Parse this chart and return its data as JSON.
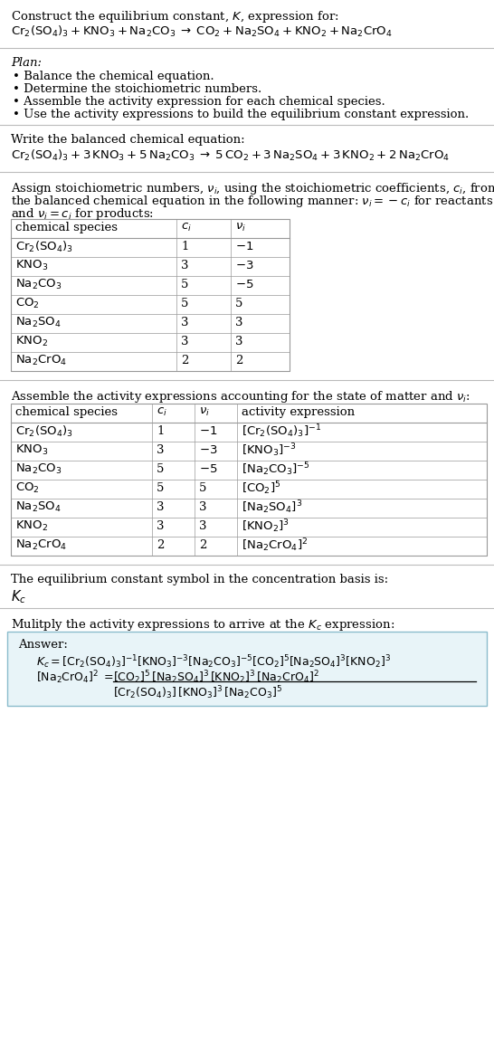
{
  "title_line1": "Construct the equilibrium constant, $K$, expression for:",
  "title_line2": "$\\mathrm{Cr_2(SO_4)_3 + KNO_3 + Na_2CO_3 \\;\\rightarrow\\; CO_2 + Na_2SO_4 + KNO_2 + Na_2CrO_4}$",
  "plan_title": "Plan:",
  "plan_items": [
    "Balance the chemical equation.",
    "Determine the stoichiometric numbers.",
    "Assemble the activity expression for each chemical species.",
    "Use the activity expressions to build the equilibrium constant expression."
  ],
  "balanced_label": "Write the balanced chemical equation:",
  "balanced_eq": "$\\mathrm{Cr_2(SO_4)_3 + 3\\,KNO_3 + 5\\,Na_2CO_3 \\;\\rightarrow\\; 5\\,CO_2 + 3\\,Na_2SO_4 + 3\\,KNO_2 + 2\\,Na_2CrO_4}$",
  "assign_text1": "Assign stoichiometric numbers, $\\nu_i$, using the stoichiometric coefficients, $c_i$, from",
  "assign_text2": "the balanced chemical equation in the following manner: $\\nu_i = -c_i$ for reactants",
  "assign_text3": "and $\\nu_i = c_i$ for products:",
  "table1_headers": [
    "chemical species",
    "$c_i$",
    "$\\nu_i$"
  ],
  "table1_rows": [
    [
      "$\\mathrm{Cr_2(SO_4)_3}$",
      "1",
      "$-1$"
    ],
    [
      "$\\mathrm{KNO_3}$",
      "3",
      "$-3$"
    ],
    [
      "$\\mathrm{Na_2CO_3}$",
      "5",
      "$-5$"
    ],
    [
      "$\\mathrm{CO_2}$",
      "5",
      "5"
    ],
    [
      "$\\mathrm{Na_2SO_4}$",
      "3",
      "3"
    ],
    [
      "$\\mathrm{KNO_2}$",
      "3",
      "3"
    ],
    [
      "$\\mathrm{Na_2CrO_4}$",
      "2",
      "2"
    ]
  ],
  "assemble_label": "Assemble the activity expressions accounting for the state of matter and $\\nu_i$:",
  "table2_headers": [
    "chemical species",
    "$c_i$",
    "$\\nu_i$",
    "activity expression"
  ],
  "table2_rows": [
    [
      "$\\mathrm{Cr_2(SO_4)_3}$",
      "1",
      "$-1$",
      "$[\\mathrm{Cr_2(SO_4)_3}]^{-1}$"
    ],
    [
      "$\\mathrm{KNO_3}$",
      "3",
      "$-3$",
      "$[\\mathrm{KNO_3}]^{-3}$"
    ],
    [
      "$\\mathrm{Na_2CO_3}$",
      "5",
      "$-5$",
      "$[\\mathrm{Na_2CO_3}]^{-5}$"
    ],
    [
      "$\\mathrm{CO_2}$",
      "5",
      "5",
      "$[\\mathrm{CO_2}]^{5}$"
    ],
    [
      "$\\mathrm{Na_2SO_4}$",
      "3",
      "3",
      "$[\\mathrm{Na_2SO_4}]^{3}$"
    ],
    [
      "$\\mathrm{KNO_2}$",
      "3",
      "3",
      "$[\\mathrm{KNO_2}]^{3}$"
    ],
    [
      "$\\mathrm{Na_2CrO_4}$",
      "2",
      "2",
      "$[\\mathrm{Na_2CrO_4}]^{2}$"
    ]
  ],
  "kc_label": "The equilibrium constant symbol in the concentration basis is:",
  "kc_symbol": "$K_c$",
  "multiply_label": "Mulitply the activity expressions to arrive at the $K_c$ expression:",
  "answer_label": "Answer:",
  "answer_line1": "$K_c = [\\mathrm{Cr_2(SO_4)_3}]^{-1} [\\mathrm{KNO_3}]^{-3} [\\mathrm{Na_2CO_3}]^{-5} [\\mathrm{CO_2}]^{5} [\\mathrm{Na_2SO_4}]^{3} [\\mathrm{KNO_2}]^{3}$",
  "answer_line2_left": "$[\\mathrm{Na_2CrO_4}]^{2}\\; =$",
  "answer_frac_num": "$[\\mathrm{CO_2}]^{5}\\, [\\mathrm{Na_2SO_4}]^{3}\\, [\\mathrm{KNO_2}]^{3}\\, [\\mathrm{Na_2CrO_4}]^{2}$",
  "answer_frac_den": "$[\\mathrm{Cr_2(SO_4)_3}]\\, [\\mathrm{KNO_3}]^{3}\\, [\\mathrm{Na_2CO_3}]^{5}$",
  "bg_color": "#ffffff",
  "answer_box_color": "#e8f4f8",
  "answer_box_border": "#8bbccc",
  "text_color": "#000000",
  "line_color": "#bbbbbb",
  "table_border_color": "#999999",
  "font_size": 9.5,
  "table_font_size": 9.5
}
